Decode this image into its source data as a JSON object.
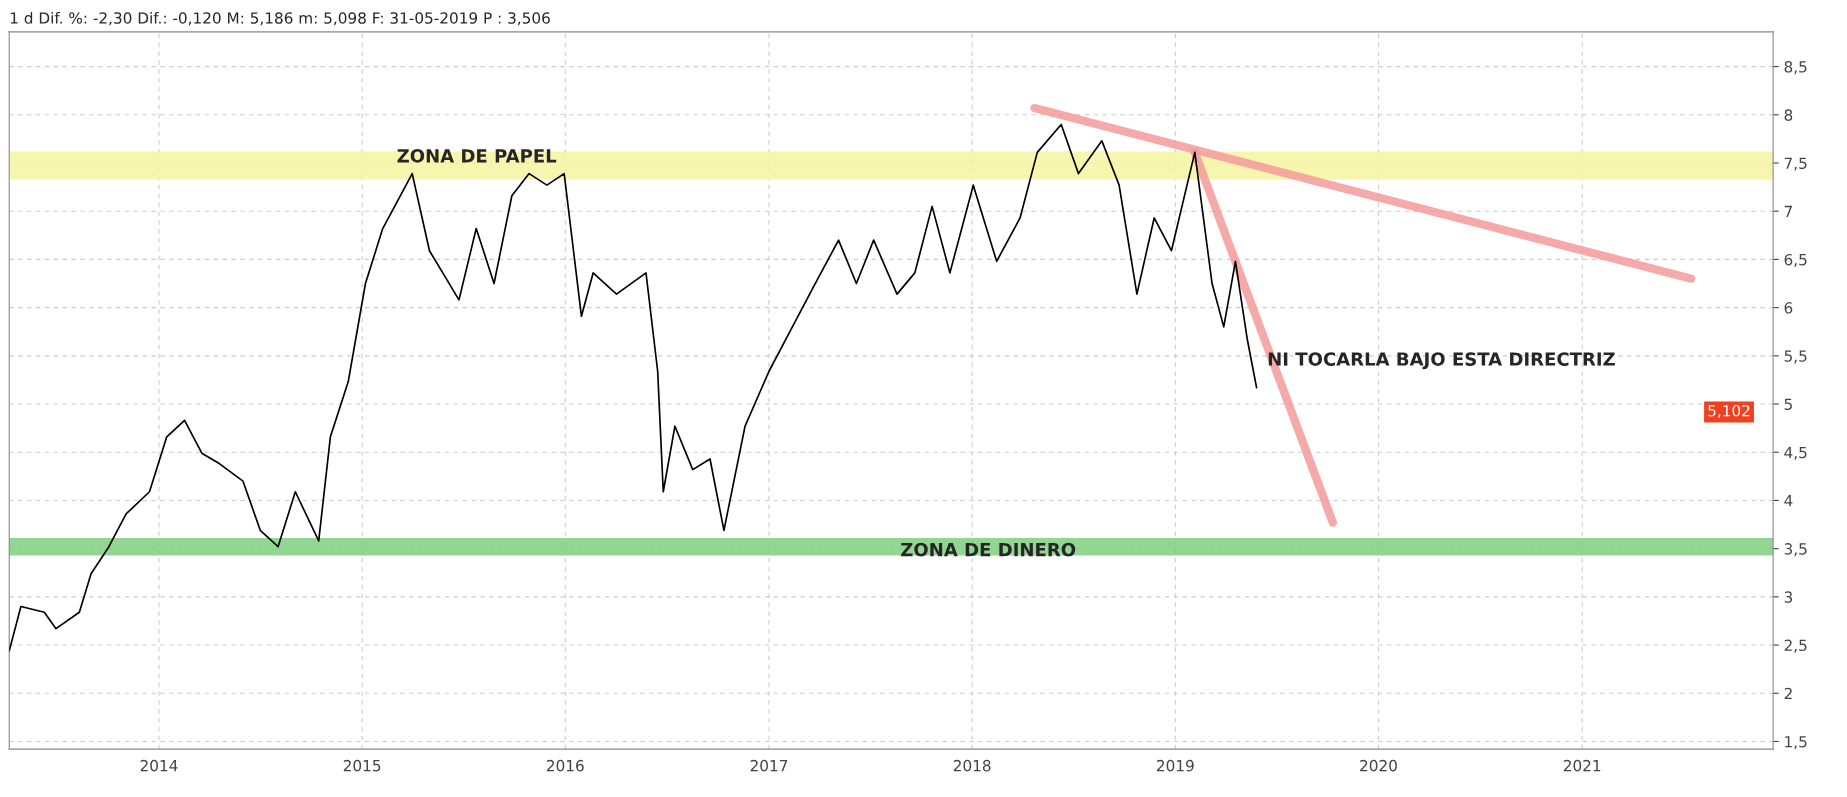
{
  "chart_data": {
    "type": "line",
    "title": "1 d Dif. %: -2,30 Dif.: -0,120 M: 5,186 m: 5,098 F: 31-05-2019 P : 3,506",
    "series": [
      {
        "color": "#000000",
        "x": [
          "2013-04-07",
          "2013-04-28",
          "2013-06-09",
          "2013-06-30",
          "2013-08-11",
          "2013-09-01",
          "2013-10-03",
          "2013-11-03",
          "2013-12-15",
          "2014-01-15",
          "2014-02-16",
          "2014-03-19",
          "2014-04-20",
          "2014-06-01",
          "2014-07-02",
          "2014-08-03",
          "2014-09-03",
          "2014-10-15",
          "2014-11-05",
          "2014-12-07",
          "2015-01-07",
          "2015-02-07",
          "2015-04-01",
          "2015-05-02",
          "2015-06-24",
          "2015-07-25",
          "2015-08-26",
          "2015-09-27",
          "2015-10-28",
          "2015-11-29",
          "2015-12-30",
          "2016-01-30",
          "2016-02-20",
          "2016-04-02",
          "2016-05-25",
          "2016-06-15",
          "2016-06-25",
          "2016-07-16",
          "2016-08-17",
          "2016-09-17",
          "2016-10-12",
          "2016-11-19",
          "2017-01-01",
          "2017-02-12",
          "2017-03-25",
          "2017-05-06",
          "2017-06-07",
          "2017-07-08",
          "2017-08-19",
          "2017-09-20",
          "2017-10-21",
          "2017-11-22",
          "2018-01-03",
          "2018-02-14",
          "2018-03-28",
          "2018-04-28",
          "2018-06-10",
          "2018-07-11",
          "2018-08-22",
          "2018-09-22",
          "2018-10-24",
          "2018-11-24",
          "2018-12-25",
          "2019-02-05",
          "2019-03-08",
          "2019-03-29",
          "2019-04-19",
          "2019-05-10",
          "2019-05-27"
        ],
        "values": [
          2.44,
          2.9,
          2.84,
          2.67,
          2.84,
          3.24,
          3.52,
          3.86,
          4.09,
          4.66,
          4.83,
          4.49,
          4.38,
          4.2,
          3.69,
          3.52,
          4.09,
          3.58,
          4.66,
          5.23,
          6.25,
          6.82,
          7.39,
          6.59,
          6.08,
          6.82,
          6.25,
          7.16,
          7.39,
          7.27,
          7.39,
          5.91,
          6.36,
          6.14,
          6.36,
          5.34,
          4.09,
          4.77,
          4.32,
          4.43,
          3.69,
          4.77,
          5.34,
          5.8,
          6.25,
          6.7,
          6.25,
          6.7,
          6.14,
          6.36,
          7.05,
          6.36,
          7.27,
          6.48,
          6.93,
          7.61,
          7.9,
          7.39,
          7.73,
          7.27,
          6.14,
          6.93,
          6.59,
          7.61,
          6.25,
          5.8,
          6.48,
          5.68,
          5.17
        ]
      },
      {
        "type": "line",
        "color": "#f59a9a",
        "x": [
          "2018-04-23",
          "2021-07-16"
        ],
        "values": [
          8.07,
          6.3
        ]
      },
      {
        "type": "line",
        "color": "#f59a9a",
        "x": [
          "2019-02-05",
          "2019-10-11"
        ],
        "values": [
          7.61,
          3.77
        ]
      }
    ],
    "bands": [
      {
        "axis": "y",
        "from": 7.33,
        "to": 7.62,
        "color": "#f5f5a0"
      },
      {
        "axis": "y",
        "from": 3.43,
        "to": 3.61,
        "color": "#7fcf7f"
      }
    ],
    "annotations": [
      "ZONA DE PAPEL",
      "ZONA DE DINERO",
      {
        "text": "NI TOCARLA BAJO ESTA DIRECTRIZ",
        "x": "2019-06-15",
        "y": 5.45
      },
      "5,102"
    ],
    "xlim": [
      "2013-04-07",
      "2021-12-10"
    ],
    "xticks": [
      {
        "value": "2014-01-01",
        "label": "2014"
      },
      {
        "value": "2015-01-01",
        "label": "2015"
      },
      {
        "value": "2016-01-01",
        "label": "2016"
      },
      {
        "value": "2017-01-01",
        "label": "2017"
      },
      {
        "value": "2018-01-01",
        "label": "2018"
      },
      {
        "value": "2019-01-01",
        "label": "2019"
      },
      {
        "value": "2020-01-01",
        "label": "2020"
      },
      {
        "value": "2021-01-01",
        "label": "2021"
      }
    ],
    "ylim": [
      1.42,
      8.86
    ],
    "yticks": [
      {
        "value": 1.5,
        "label": "1,5"
      },
      2,
      {
        "value": 2.5,
        "label": "2,5"
      },
      3,
      {
        "value": 3.5,
        "label": "3,5"
      },
      4,
      {
        "value": 4.5,
        "label": "4,5"
      },
      5,
      {
        "value": 5.5,
        "label": "5,5"
      },
      6,
      {
        "value": 6.5,
        "label": "6,5"
      },
      7,
      {
        "value": 7.5,
        "label": "7,5"
      },
      8,
      {
        "value": 8.5,
        "label": "8,5"
      }
    ],
    "grid": true,
    "legend": false
  }
}
